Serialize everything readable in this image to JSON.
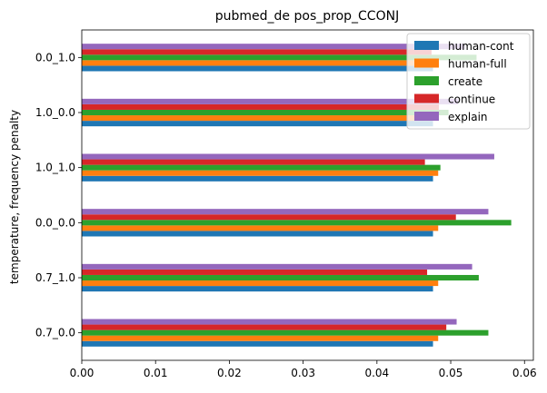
{
  "chart_data": {
    "type": "bar",
    "orientation": "horizontal",
    "title": "pubmed_de pos_prop_CCONJ",
    "ylabel": "temperature, frequency penalty",
    "xlabel": "",
    "categories": [
      "0.7_0.0",
      "0.7_1.0",
      "0.0_0.0",
      "1.0_1.0",
      "1.0_0.0",
      "0.0_1.0"
    ],
    "xlim": [
      0,
      0.0612
    ],
    "xticks": [
      0.0,
      0.01,
      0.02,
      0.03,
      0.04,
      0.05,
      0.06
    ],
    "xtick_labels": [
      "0.00",
      "0.01",
      "0.02",
      "0.03",
      "0.04",
      "0.05",
      "0.06"
    ],
    "grid": false,
    "legend_position": "top-right",
    "series": [
      {
        "name": "human-cont",
        "color": "#1f77b4",
        "values": [
          0.0476,
          0.0476,
          0.0476,
          0.0476,
          0.0476,
          0.0476
        ]
      },
      {
        "name": "human-full",
        "color": "#ff7f0e",
        "values": [
          0.0483,
          0.0483,
          0.0483,
          0.0483,
          0.0483,
          0.0483
        ]
      },
      {
        "name": "create",
        "color": "#2ca02c",
        "values": [
          0.0551,
          0.0538,
          0.0582,
          0.0486,
          0.0497,
          0.0535
        ]
      },
      {
        "name": "continue",
        "color": "#d62728",
        "values": [
          0.0494,
          0.0468,
          0.0507,
          0.0465,
          0.0484,
          0.0474
        ]
      },
      {
        "name": "explain",
        "color": "#9467bd",
        "values": [
          0.0508,
          0.0529,
          0.0551,
          0.0559,
          0.051,
          0.0519
        ]
      }
    ]
  }
}
